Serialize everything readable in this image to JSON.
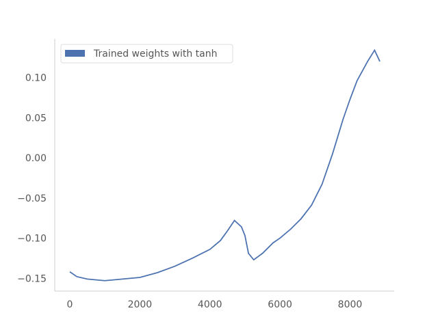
{
  "chart_data": {
    "type": "line",
    "x": [
      0,
      200,
      500,
      1000,
      1500,
      2000,
      2500,
      3000,
      3500,
      4000,
      4300,
      4500,
      4700,
      4900,
      5000,
      5100,
      5250,
      5500,
      5800,
      6000,
      6300,
      6600,
      6900,
      7200,
      7500,
      7800,
      8000,
      8200,
      8500,
      8700,
      8850
    ],
    "series": [
      {
        "name": "Trained weights with tanh",
        "color": "#4c72b0",
        "values": [
          -0.141,
          -0.147,
          -0.15,
          -0.152,
          -0.15,
          -0.148,
          -0.142,
          -0.134,
          -0.124,
          -0.113,
          -0.102,
          -0.09,
          -0.077,
          -0.085,
          -0.096,
          -0.118,
          -0.126,
          -0.118,
          -0.105,
          -0.099,
          -0.088,
          -0.075,
          -0.058,
          -0.032,
          0.006,
          0.049,
          0.074,
          0.097,
          0.121,
          0.135,
          0.121
        ]
      }
    ],
    "xlim": [
      -430,
      9260
    ],
    "ylim": [
      -0.165,
      0.149
    ],
    "xticks": [
      0,
      2000,
      4000,
      6000,
      8000
    ],
    "yticks": [
      {
        "value": -0.15,
        "label": "−0.15"
      },
      {
        "value": -0.1,
        "label": "−0.10"
      },
      {
        "value": -0.05,
        "label": "−0.05"
      },
      {
        "value": 0,
        "label": "0.00"
      },
      {
        "value": 0.05,
        "label": "0.05"
      },
      {
        "value": 0.1,
        "label": "0.10"
      }
    ],
    "grid": false,
    "legend": "upper-left"
  }
}
